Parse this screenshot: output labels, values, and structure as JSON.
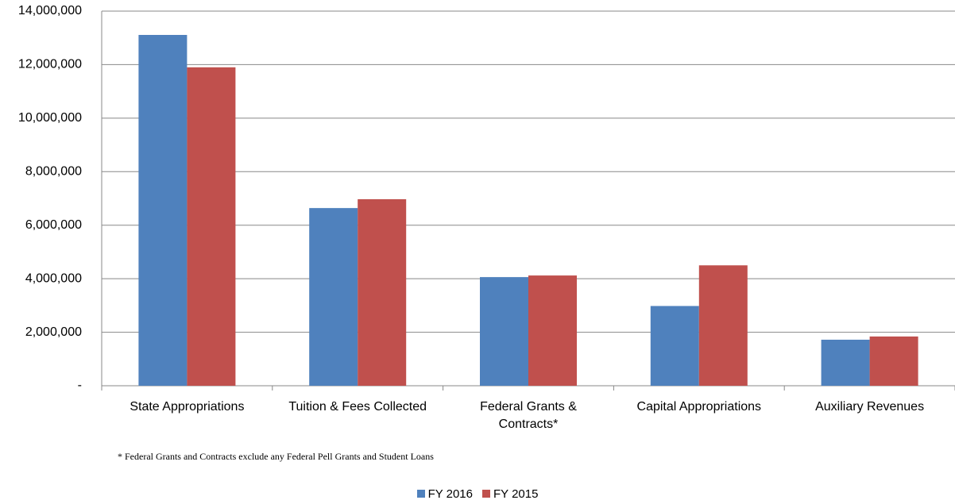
{
  "chart_data": {
    "type": "bar",
    "categories": [
      "State Appropriations",
      "Tuition & Fees Collected",
      "Federal Grants & Contracts*",
      "Capital Appropriations",
      "Auxiliary Revenues"
    ],
    "series": [
      {
        "name": "FY 2016",
        "color": "#4f81bd",
        "values": [
          13110000,
          6640000,
          4060000,
          2980000,
          1720000
        ]
      },
      {
        "name": "FY 2015",
        "color": "#c0504d",
        "values": [
          11900000,
          6970000,
          4120000,
          4500000,
          1840000
        ]
      }
    ],
    "ylim": [
      0,
      14000000
    ],
    "yticks": [
      {
        "value": 0,
        "label": "-"
      },
      {
        "value": 2000000,
        "label": "2,000,000"
      },
      {
        "value": 4000000,
        "label": "4,000,000"
      },
      {
        "value": 6000000,
        "label": "6,000,000"
      },
      {
        "value": 8000000,
        "label": "8,000,000"
      },
      {
        "value": 10000000,
        "label": "10,000,000"
      },
      {
        "value": 12000000,
        "label": "12,000,000"
      },
      {
        "value": 14000000,
        "label": "14,000,000"
      }
    ],
    "grid": true,
    "legend": "bottom",
    "footnote": "* Federal Grants and Contracts exclude any Federal Pell Grants and Student Loans"
  }
}
